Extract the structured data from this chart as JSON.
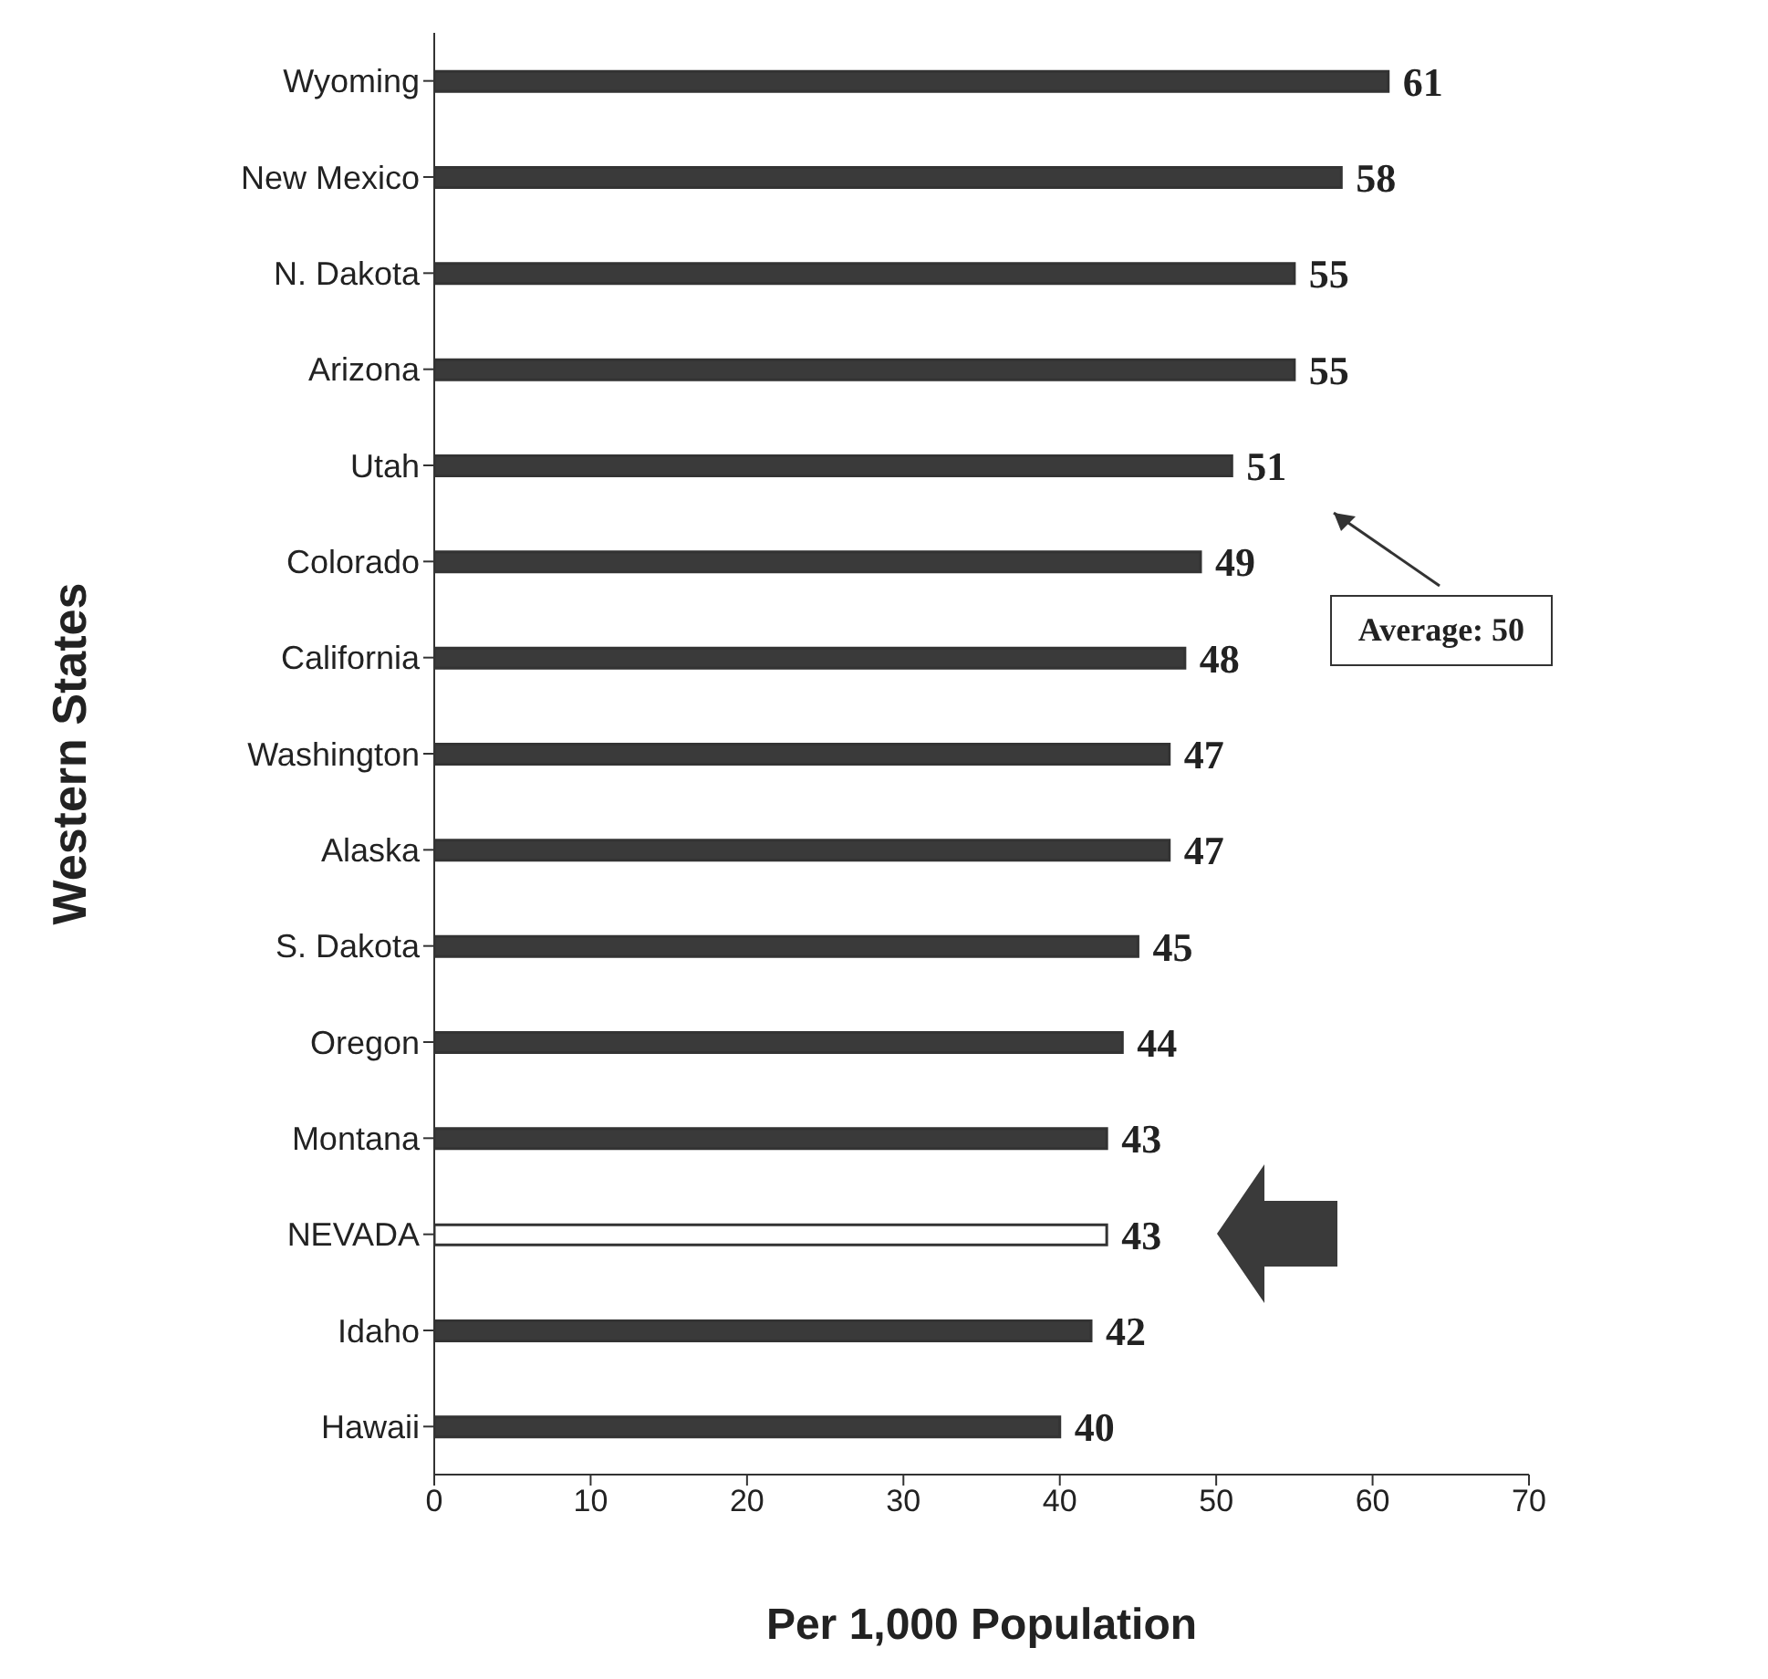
{
  "chart_data": {
    "type": "bar",
    "orientation": "horizontal",
    "xlabel": "Per 1,000 Population",
    "ylabel": "Western States",
    "categories": [
      "Wyoming",
      "New Mexico",
      "N. Dakota",
      "Arizona",
      "Utah",
      "Colorado",
      "California",
      "Washington",
      "Alaska",
      "S. Dakota",
      "Oregon",
      "Montana",
      "NEVADA",
      "Idaho",
      "Hawaii"
    ],
    "values": [
      61,
      58,
      55,
      55,
      51,
      49,
      48,
      47,
      47,
      45,
      44,
      43,
      43,
      42,
      40
    ],
    "colors": [
      "#3a3a3a",
      "#3a3a3a",
      "#3a3a3a",
      "#3a3a3a",
      "#3a3a3a",
      "#3a3a3a",
      "#3a3a3a",
      "#3a3a3a",
      "#3a3a3a",
      "#3a3a3a",
      "#3a3a3a",
      "#3a3a3a",
      "#ffffff",
      "#3a3a3a",
      "#3a3a3a"
    ],
    "xlim": [
      0,
      70
    ],
    "xticks": [
      0,
      10,
      20,
      30,
      40,
      50,
      60,
      70
    ],
    "data_labels": true,
    "grid": false,
    "legend": false,
    "annotations": [
      "Average: 50"
    ]
  }
}
